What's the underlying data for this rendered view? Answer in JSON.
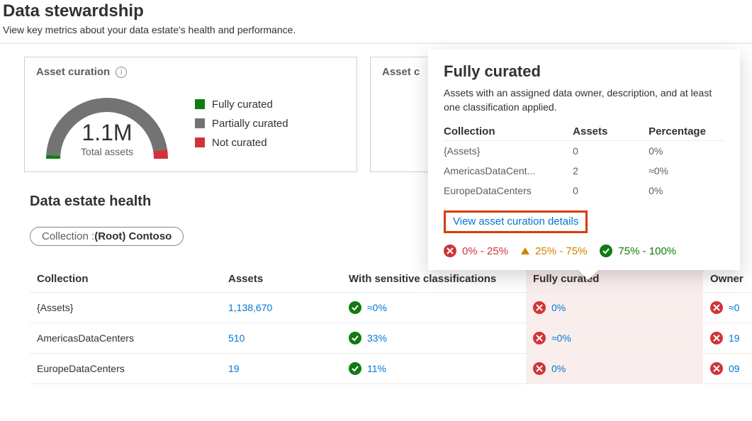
{
  "page": {
    "title": "Data stewardship",
    "subtitle": "View key metrics about your data estate's health and performance."
  },
  "colors": {
    "fully": "#107c10",
    "partially": "#737373",
    "not": "#d13438",
    "link": "#0078d4",
    "ok_bg": "#107c10",
    "bad_bg": "#d13438",
    "warn": "#d08400",
    "highlight_bg": "#faeeed",
    "highlight_border": "#d83b01"
  },
  "gauge": {
    "value": "1.1M",
    "label": "Total assets",
    "fully_pct": 2,
    "partially_pct": 93,
    "not_pct": 5
  },
  "card1": {
    "title": "Asset curation"
  },
  "card2": {
    "title": "Asset c"
  },
  "legend": {
    "fully": "Fully curated",
    "partially": "Partially curated",
    "not": "Not curated"
  },
  "section": {
    "title": "Data estate health",
    "filter_label": "Collection : ",
    "filter_value": "(Root) Contoso"
  },
  "table": {
    "headers": {
      "collection": "Collection",
      "assets": "Assets",
      "sensitive": "With sensitive classifications",
      "fully": "Fully curated",
      "owners": "Owner"
    },
    "rows": [
      {
        "collection": "{Assets}",
        "assets": "1,138,670",
        "sensitive": "≈0%",
        "sensitive_status": "ok",
        "fully": "0%",
        "fully_status": "bad",
        "owners": "≈0",
        "owners_status": "bad"
      },
      {
        "collection": "AmericasDataCenters",
        "assets": "510",
        "sensitive": "33%",
        "sensitive_status": "ok",
        "fully": "≈0%",
        "fully_status": "bad",
        "owners": "19",
        "owners_status": "bad"
      },
      {
        "collection": "EuropeDataCenters",
        "assets": "19",
        "sensitive": "11%",
        "sensitive_status": "ok",
        "fully": "0%",
        "fully_status": "bad",
        "owners": "09",
        "owners_status": "bad"
      }
    ]
  },
  "flyout": {
    "title": "Fully curated",
    "desc": "Assets with an assigned data owner, description, and at least one classification applied.",
    "headers": {
      "collection": "Collection",
      "assets": "Assets",
      "percentage": "Percentage"
    },
    "rows": [
      {
        "collection": "{Assets}",
        "assets": "0",
        "percentage": "0%"
      },
      {
        "collection": "AmericasDataCent...",
        "assets": "2",
        "percentage": "≈0%"
      },
      {
        "collection": "EuropeDataCenters",
        "assets": "0",
        "percentage": "0%"
      }
    ],
    "link": "View asset curation details",
    "scale": {
      "low": "0% - 25%",
      "mid": "25% - 75%",
      "high": "75% - 100%"
    }
  }
}
